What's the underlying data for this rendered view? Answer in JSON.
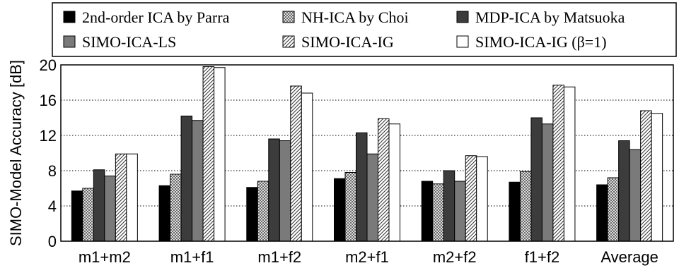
{
  "chart_data": {
    "type": "bar",
    "title": "",
    "xlabel": "",
    "ylabel": "SIMO-Model Accuracy [dB]",
    "ylim": [
      0,
      20
    ],
    "yticks": [
      0,
      4,
      8,
      12,
      16,
      20
    ],
    "grid": true,
    "legend_position": "top",
    "categories": [
      "m1+m2",
      "m1+f1",
      "m1+f2",
      "m2+f1",
      "m2+f2",
      "f1+f2",
      "Average"
    ],
    "series": [
      {
        "name": "2nd-order ICA by Parra",
        "pattern": "solid-black",
        "values": [
          5.7,
          6.3,
          6.1,
          7.1,
          6.8,
          6.7,
          6.4
        ]
      },
      {
        "name": "NH-ICA by Choi",
        "pattern": "crosshatch",
        "values": [
          6.0,
          7.6,
          6.8,
          7.8,
          6.5,
          7.9,
          7.2
        ]
      },
      {
        "name": "MDP-ICA by Matsuoka",
        "pattern": "solid-dark",
        "values": [
          8.1,
          14.2,
          11.6,
          12.3,
          8.0,
          14.0,
          11.4
        ]
      },
      {
        "name": "SIMO-ICA-LS",
        "pattern": "solid-gray",
        "values": [
          7.4,
          13.7,
          11.4,
          9.9,
          6.8,
          13.3,
          10.4
        ]
      },
      {
        "name": "SIMO-ICA-IG",
        "pattern": "diagonal",
        "values": [
          9.9,
          19.8,
          17.6,
          13.9,
          9.7,
          17.7,
          14.8
        ]
      },
      {
        "name": "SIMO-ICA-IG (β=1)",
        "pattern": "white",
        "values": [
          9.9,
          19.7,
          16.8,
          13.3,
          9.6,
          17.5,
          14.5
        ]
      }
    ]
  }
}
